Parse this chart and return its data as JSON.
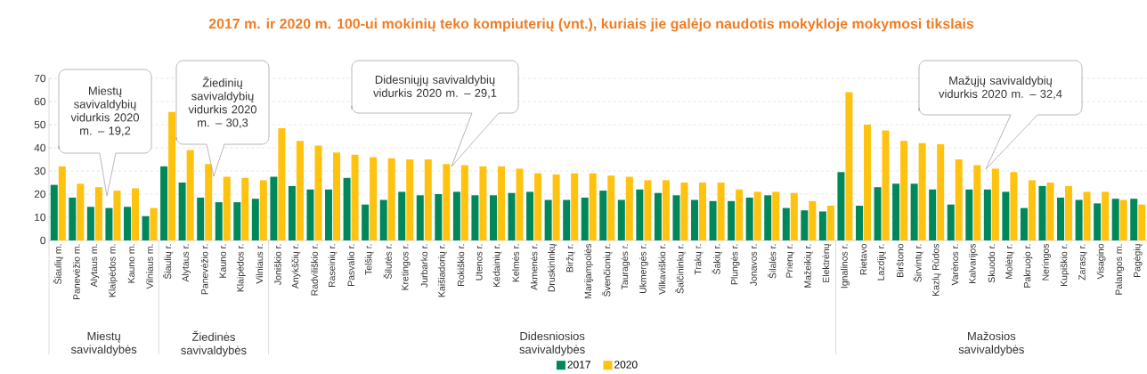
{
  "chart_data": {
    "type": "bar",
    "title": "2017 m. ir 2020 m. 100-ui mokinių teko kompiuterių (vnt.), kuriais jie galėjo naudotis mokykloje mokymosi tikslais",
    "categories": [
      "Šiaulių m.",
      "Panevėžio m.",
      "Alytaus m.",
      "Klaipėdos m.",
      "Kauno m.",
      "Vilniaus m.",
      "Šiaulių r.",
      "Alytaus r.",
      "Panevėžio r.",
      "Kauno r.",
      "Klaipėdos r.",
      "Vilniaus r.",
      "Joniškio r.",
      "Anykščių r.",
      "Radviliškio r.",
      "Raseinių r.",
      "Pasvalio r.",
      "Telšių r.",
      "Šilutės r.",
      "Kretingos r.",
      "Jurbarko r.",
      "Kaišiadorių r.",
      "Rokiškio r.",
      "Utenos r.",
      "Kėdainių r.",
      "Kelmės r.",
      "Akmenės r.",
      "Druskininkų",
      "Biržų r.",
      "Marijampolės",
      "Švenčionių r.",
      "Tauragės r.",
      "Ukmergės r.",
      "Vilkaviškio r.",
      "Šalčininkų r.",
      "Trakų r.",
      "Šakių r.",
      "Plungės r.",
      "Jonavos r.",
      "Šilalės r.",
      "Prienų r.",
      "Mažeikių r.",
      "Elektrėnų",
      "Ignalinos r.",
      "Rietavo",
      "Lazdijų r.",
      "Birštono",
      "Širvintų r.",
      "Kazlų Rūdos",
      "Varėnos r.",
      "Kalvarijos",
      "Skuodo r.",
      "Molėtų r.",
      "Pakruojo r.",
      "Neringos",
      "Kupiškio r.",
      "Zarasų r.",
      "Visagino",
      "Palangos m.",
      "Pagėgių"
    ],
    "series": [
      {
        "name": "2017",
        "color": "#00875a",
        "values": [
          24,
          18.5,
          14.5,
          14,
          14.5,
          10.5,
          32,
          25,
          18.5,
          16.5,
          16.5,
          18,
          27.5,
          23.5,
          22,
          22,
          27,
          15.5,
          17.5,
          21,
          19.5,
          20,
          21,
          19.5,
          19.5,
          20.5,
          21,
          17.5,
          17.5,
          18.5,
          21.5,
          17.5,
          22,
          20.5,
          19.5,
          17.5,
          17,
          17,
          18.5,
          19.5,
          14,
          13,
          12.5,
          29.5,
          15,
          23,
          24.5,
          24.5,
          22,
          15.5,
          22,
          22,
          21,
          14,
          23.5,
          18.5,
          17.5,
          16,
          18,
          18
        ]
      },
      {
        "name": "2020",
        "color": "#ffc20e",
        "values": [
          32,
          24.5,
          23,
          21.5,
          22.5,
          14,
          55.5,
          39,
          33,
          27.5,
          27,
          26,
          48.5,
          43,
          41,
          38,
          37,
          36,
          35.5,
          35,
          35,
          33,
          32.5,
          32,
          32,
          31,
          29,
          28.5,
          29,
          29,
          28,
          27.5,
          26,
          26,
          25,
          25,
          25,
          22,
          21,
          21,
          20.5,
          17,
          15,
          64,
          50,
          47.5,
          43,
          42,
          41.5,
          35,
          32.5,
          31,
          29.5,
          26,
          25,
          23.5,
          21,
          21,
          17.5,
          15.5
        ]
      }
    ],
    "ylim": [
      0,
      70
    ],
    "yticks": [
      0,
      10,
      20,
      30,
      40,
      50,
      60,
      70
    ],
    "grid": "y",
    "legend": "bottom",
    "annotations": [
      "Miestų savivaldybių vidurkis 2020 m. – 19,2",
      "Žiedinių savivaldybių vidurkis 2020 m. – 30,3",
      "Didesniųjų savivaldybių vidurkis 2020 m. – 29,1",
      "Mažųjų savivaldybių vidurkis 2020 m. – 32,4",
      "Miestų savivaldybės",
      "Žiedinės savivaldybės",
      "Didesniosios savivaldybės",
      "Mažosios savivaldybės"
    ]
  }
}
